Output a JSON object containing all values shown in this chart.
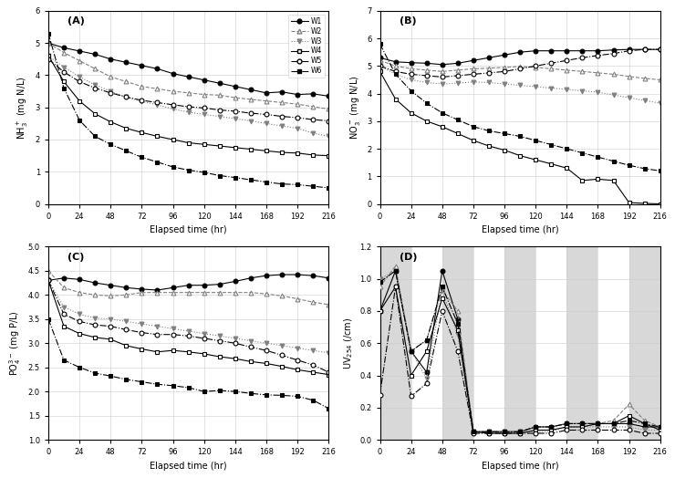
{
  "time": [
    0,
    12,
    24,
    36,
    48,
    60,
    72,
    84,
    96,
    108,
    120,
    132,
    144,
    156,
    168,
    180,
    192,
    204,
    216
  ],
  "A_W1": [
    5.0,
    4.85,
    4.75,
    4.65,
    4.5,
    4.4,
    4.3,
    4.2,
    4.05,
    3.95,
    3.85,
    3.75,
    3.65,
    3.55,
    3.45,
    3.48,
    3.4,
    3.42,
    3.35
  ],
  "A_W2": [
    5.0,
    4.7,
    4.45,
    4.2,
    3.95,
    3.8,
    3.65,
    3.58,
    3.5,
    3.45,
    3.4,
    3.38,
    3.3,
    3.25,
    3.2,
    3.15,
    3.1,
    3.02,
    2.95
  ],
  "A_W3": [
    4.6,
    4.25,
    3.95,
    3.7,
    3.5,
    3.32,
    3.18,
    3.08,
    2.95,
    2.85,
    2.78,
    2.72,
    2.65,
    2.58,
    2.5,
    2.42,
    2.35,
    2.2,
    2.1
  ],
  "A_W4": [
    4.6,
    3.8,
    3.2,
    2.8,
    2.55,
    2.35,
    2.22,
    2.1,
    2.0,
    1.9,
    1.85,
    1.8,
    1.75,
    1.7,
    1.65,
    1.6,
    1.58,
    1.52,
    1.5
  ],
  "A_W5": [
    4.5,
    4.1,
    3.8,
    3.6,
    3.45,
    3.32,
    3.22,
    3.15,
    3.08,
    3.02,
    2.98,
    2.92,
    2.88,
    2.82,
    2.78,
    2.72,
    2.68,
    2.62,
    2.58
  ],
  "A_W6": [
    5.3,
    3.6,
    2.6,
    2.1,
    1.85,
    1.65,
    1.45,
    1.3,
    1.15,
    1.05,
    0.98,
    0.88,
    0.82,
    0.75,
    0.68,
    0.62,
    0.6,
    0.55,
    0.5
  ],
  "B_W1": [
    5.3,
    5.15,
    5.12,
    5.1,
    5.05,
    5.1,
    5.2,
    5.3,
    5.4,
    5.5,
    5.55,
    5.55,
    5.55,
    5.55,
    5.55,
    5.58,
    5.6,
    5.6,
    5.6
  ],
  "B_W2": [
    5.2,
    5.0,
    4.9,
    4.85,
    4.8,
    4.85,
    4.9,
    4.92,
    4.95,
    4.98,
    4.95,
    4.9,
    4.85,
    4.8,
    4.75,
    4.7,
    4.62,
    4.55,
    4.5
  ],
  "B_W3": [
    5.0,
    4.7,
    4.5,
    4.4,
    4.35,
    4.38,
    4.42,
    4.4,
    4.35,
    4.3,
    4.25,
    4.2,
    4.15,
    4.1,
    4.05,
    3.95,
    3.85,
    3.75,
    3.65
  ],
  "B_W4": [
    4.8,
    3.8,
    3.3,
    3.0,
    2.8,
    2.55,
    2.3,
    2.1,
    1.95,
    1.75,
    1.6,
    1.45,
    1.3,
    0.85,
    0.9,
    0.85,
    0.05,
    0.02,
    0.0
  ],
  "B_W5": [
    5.0,
    4.8,
    4.7,
    4.65,
    4.6,
    4.65,
    4.7,
    4.75,
    4.8,
    4.9,
    5.0,
    5.1,
    5.2,
    5.3,
    5.38,
    5.45,
    5.55,
    5.6,
    5.6
  ],
  "B_W6": [
    5.8,
    4.7,
    4.1,
    3.65,
    3.3,
    3.05,
    2.8,
    2.65,
    2.55,
    2.45,
    2.3,
    2.15,
    2.0,
    1.85,
    1.7,
    1.55,
    1.4,
    1.28,
    1.2
  ],
  "C_W1": [
    4.3,
    4.35,
    4.32,
    4.25,
    4.2,
    4.15,
    4.12,
    4.1,
    4.15,
    4.2,
    4.2,
    4.22,
    4.28,
    4.35,
    4.4,
    4.42,
    4.42,
    4.4,
    4.35
  ],
  "C_W2": [
    4.5,
    4.15,
    4.05,
    4.0,
    3.98,
    4.0,
    4.05,
    4.05,
    4.05,
    4.05,
    4.05,
    4.05,
    4.05,
    4.05,
    4.02,
    3.98,
    3.92,
    3.85,
    3.8
  ],
  "C_W3": [
    4.3,
    3.75,
    3.6,
    3.52,
    3.5,
    3.45,
    3.4,
    3.35,
    3.3,
    3.25,
    3.2,
    3.15,
    3.1,
    3.05,
    3.0,
    2.95,
    2.9,
    2.85,
    2.8
  ],
  "C_W4": [
    4.3,
    3.35,
    3.2,
    3.12,
    3.08,
    2.95,
    2.88,
    2.82,
    2.85,
    2.82,
    2.78,
    2.72,
    2.68,
    2.62,
    2.58,
    2.52,
    2.45,
    2.4,
    2.35
  ],
  "C_W5": [
    4.3,
    3.6,
    3.45,
    3.38,
    3.35,
    3.28,
    3.22,
    3.18,
    3.18,
    3.15,
    3.1,
    3.05,
    3.0,
    2.92,
    2.85,
    2.75,
    2.65,
    2.55,
    2.4
  ],
  "C_W6": [
    3.5,
    2.65,
    2.5,
    2.38,
    2.32,
    2.25,
    2.2,
    2.15,
    2.12,
    2.08,
    2.0,
    2.02,
    2.0,
    1.96,
    1.93,
    1.92,
    1.9,
    1.82,
    1.65
  ],
  "D_time": [
    0,
    12,
    24,
    36,
    48,
    60,
    72,
    84,
    96,
    108,
    120,
    132,
    144,
    156,
    168,
    180,
    192,
    204,
    216
  ],
  "D_W1": [
    0.8,
    1.05,
    0.55,
    0.42,
    1.05,
    0.75,
    0.05,
    0.05,
    0.05,
    0.05,
    0.08,
    0.08,
    0.1,
    0.1,
    0.1,
    0.1,
    0.1,
    0.08,
    0.08
  ],
  "D_W2": [
    0.95,
    1.08,
    0.55,
    0.62,
    0.93,
    0.8,
    0.05,
    0.05,
    0.05,
    0.05,
    0.08,
    0.08,
    0.1,
    0.1,
    0.1,
    0.12,
    0.22,
    0.12,
    0.08
  ],
  "D_W3": [
    1.0,
    1.05,
    0.55,
    0.38,
    0.93,
    0.65,
    0.05,
    0.05,
    0.05,
    0.05,
    0.05,
    0.05,
    0.08,
    0.08,
    0.08,
    0.08,
    0.08,
    0.06,
    0.06
  ],
  "D_W4": [
    0.8,
    0.95,
    0.4,
    0.55,
    0.88,
    0.68,
    0.05,
    0.04,
    0.04,
    0.04,
    0.06,
    0.06,
    0.08,
    0.08,
    0.1,
    0.1,
    0.15,
    0.1,
    0.06
  ],
  "D_W5": [
    0.28,
    0.95,
    0.27,
    0.35,
    0.8,
    0.55,
    0.04,
    0.04,
    0.04,
    0.04,
    0.04,
    0.04,
    0.06,
    0.06,
    0.06,
    0.06,
    0.06,
    0.04,
    0.04
  ],
  "D_W6": [
    0.98,
    1.05,
    0.55,
    0.62,
    0.95,
    0.72,
    0.05,
    0.05,
    0.05,
    0.05,
    0.08,
    0.08,
    0.1,
    0.1,
    0.1,
    0.1,
    0.12,
    0.1,
    0.08
  ],
  "shade_intervals_D": [
    [
      0,
      24
    ],
    [
      48,
      72
    ],
    [
      96,
      120
    ],
    [
      144,
      168
    ],
    [
      192,
      216
    ]
  ],
  "series_styles": [
    {
      "label": "W1",
      "color": "black",
      "marker": "o",
      "linestyle": "-",
      "fillstyle": "full",
      "markersize": 3.5
    },
    {
      "label": "W2",
      "color": "gray",
      "marker": "^",
      "linestyle": "--",
      "fillstyle": "none",
      "markersize": 3.5
    },
    {
      "label": "W3",
      "color": "gray",
      "marker": "v",
      "linestyle": ":",
      "fillstyle": "full",
      "markersize": 3.5
    },
    {
      "label": "W4",
      "color": "black",
      "marker": "s",
      "linestyle": "-",
      "fillstyle": "none",
      "markersize": 3.5
    },
    {
      "label": "W5",
      "color": "black",
      "marker": "o",
      "linestyle": "-.",
      "fillstyle": "none",
      "markersize": 3.5
    },
    {
      "label": "W6",
      "color": "black",
      "marker": "s",
      "linestyle": "-.",
      "fillstyle": "full",
      "markersize": 3.5
    }
  ],
  "A_ylim": [
    0,
    6
  ],
  "A_yticks": [
    0,
    1,
    2,
    3,
    4,
    5,
    6
  ],
  "A_ylabel": "NH$_3^+$ (mg N/L)",
  "B_ylim": [
    0,
    7
  ],
  "B_yticks": [
    0,
    1,
    2,
    3,
    4,
    5,
    6,
    7
  ],
  "B_ylabel": "NO$_3^-$ (mg N/L)",
  "C_ylim": [
    1.0,
    5.0
  ],
  "C_yticks": [
    1.0,
    1.5,
    2.0,
    2.5,
    3.0,
    3.5,
    4.0,
    4.5,
    5.0
  ],
  "C_ylabel": "PO$_4^{3-}$ (mg P/L)",
  "D_ylim": [
    0.0,
    1.2
  ],
  "D_yticks": [
    0.0,
    0.2,
    0.4,
    0.6,
    0.8,
    1.0,
    1.2
  ],
  "D_ylabel": "UV$_{254}$ (/cm)",
  "xlabel": "Elapsed time (hr)",
  "xticks": [
    0,
    24,
    48,
    72,
    96,
    120,
    144,
    168,
    192,
    216
  ],
  "xlim": [
    0,
    216
  ],
  "shade_color": "#d8d8d8",
  "grid_color": "#cccccc",
  "background": "white"
}
